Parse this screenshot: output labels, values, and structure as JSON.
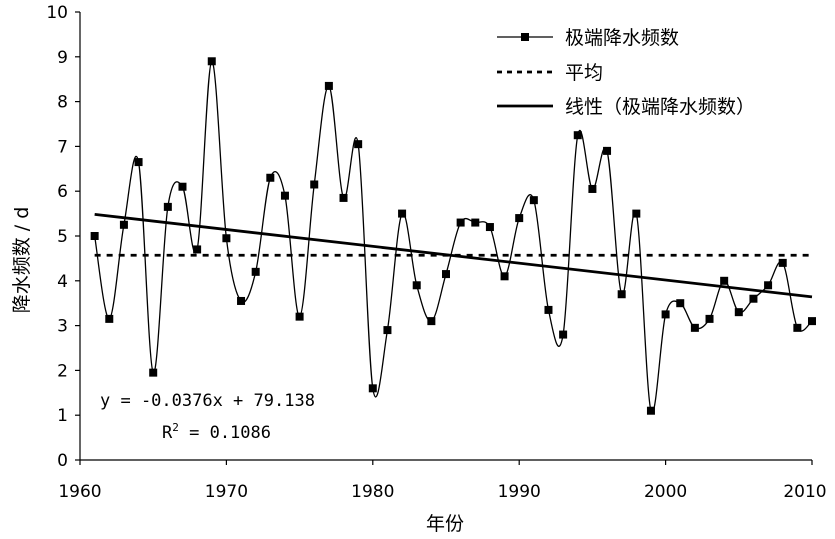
{
  "chart_data": {
    "type": "line",
    "title": "",
    "xlabel": "年份",
    "ylabel": "降水频数 / d",
    "xlim": [
      1960,
      2010
    ],
    "ylim": [
      0,
      10
    ],
    "x_ticks": [
      1960,
      1970,
      1980,
      1990,
      2000,
      2010
    ],
    "y_ticks": [
      0,
      1,
      2,
      3,
      4,
      5,
      6,
      7,
      8,
      9,
      10
    ],
    "grid": false,
    "legend_position": "top-right",
    "series": [
      {
        "name": "极端降水频数",
        "style": "line-with-square-markers",
        "color": "#000000",
        "x": [
          1961,
          1962,
          1963,
          1964,
          1965,
          1966,
          1967,
          1968,
          1969,
          1970,
          1971,
          1972,
          1973,
          1974,
          1975,
          1976,
          1977,
          1978,
          1979,
          1980,
          1981,
          1982,
          1983,
          1984,
          1985,
          1986,
          1987,
          1988,
          1989,
          1990,
          1991,
          1992,
          1993,
          1994,
          1995,
          1996,
          1997,
          1998,
          1999,
          2000,
          2001,
          2002,
          2003,
          2004,
          2005,
          2006,
          2007,
          2008,
          2009,
          2010
        ],
        "values": [
          5.0,
          3.15,
          5.25,
          6.65,
          1.95,
          5.65,
          6.1,
          4.7,
          8.9,
          4.95,
          3.55,
          4.2,
          6.3,
          5.9,
          3.2,
          6.15,
          8.35,
          5.85,
          7.05,
          1.6,
          2.9,
          5.5,
          3.9,
          3.1,
          4.15,
          5.3,
          5.3,
          5.2,
          4.1,
          5.4,
          5.8,
          3.35,
          2.8,
          7.25,
          6.05,
          6.9,
          3.7,
          5.5,
          1.1,
          3.25,
          3.5,
          2.95,
          3.15,
          4.0,
          3.3,
          3.6,
          3.9,
          4.4,
          2.95,
          3.1
        ]
      },
      {
        "name": "平均",
        "style": "dashed",
        "color": "#000000",
        "x": [
          1961,
          2010
        ],
        "values": [
          4.57,
          4.57
        ]
      },
      {
        "name": "线性（极端降水频数）",
        "style": "solid-thick",
        "color": "#000000",
        "x": [
          1961,
          2010
        ],
        "values": [
          5.4836,
          3.6412
        ]
      }
    ],
    "annotations": {
      "equation": "y = -0.0376x + 79.138",
      "r2_label": "R",
      "r2_sup": "2",
      "r2_value": " = 0.1086"
    }
  }
}
